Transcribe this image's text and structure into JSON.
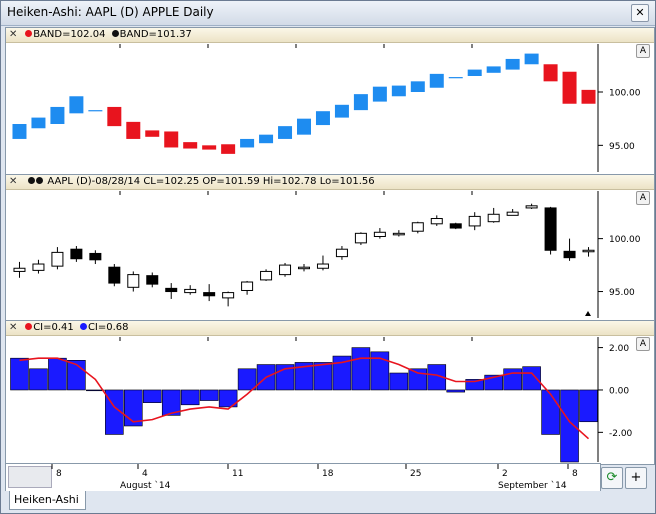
{
  "window": {
    "title": "Heiken-Ashi: AAPL (D) APPLE Daily",
    "close_label": "✕"
  },
  "panes": {
    "band": {
      "legend": [
        {
          "label": "BAND=102.04",
          "color": "#e8141e"
        },
        {
          "label": "BAND=101.37",
          "color": "#111111"
        }
      ],
      "a_label": "A",
      "yticks": [
        "100.00",
        "95.00"
      ]
    },
    "price": {
      "legend": "AAPL (D)-08/28/14 CL=102.25 OP=101.59 Hi=102.78 Lo=101.56",
      "a_label": "A",
      "yticks": [
        "100.00",
        "95.00"
      ]
    },
    "ci": {
      "legend": [
        {
          "label": "CI=0.41",
          "color": "#e8141e"
        },
        {
          "label": "CI=0.68",
          "color": "#1a1aff"
        }
      ],
      "a_label": "A",
      "yticks": [
        "2.00",
        "0.00",
        "-2.00"
      ]
    }
  },
  "xaxis": {
    "day_labels": [
      "8",
      "4",
      "11",
      "18",
      "25",
      "2",
      "8"
    ],
    "month_labels": [
      "August `14",
      "September `14"
    ]
  },
  "buttons": {
    "refresh_icon": "refresh-icon",
    "add_label": "+"
  },
  "tab": {
    "label": "Heiken-Ashi"
  },
  "chart_data": [
    {
      "type": "bar",
      "title": "BAND",
      "series": [
        {
          "name": "BAND=102.04",
          "color": "#e8141e"
        },
        {
          "name": "BAND=101.37",
          "color": "#1e8cf0"
        }
      ],
      "bars": [
        {
          "open": 95.6,
          "close": 97.0,
          "color": "#1e8cf0"
        },
        {
          "open": 96.6,
          "close": 97.6,
          "color": "#1e8cf0"
        },
        {
          "open": 97.0,
          "close": 98.6,
          "color": "#1e8cf0"
        },
        {
          "open": 98.0,
          "close": 99.6,
          "color": "#1e8cf0"
        },
        {
          "open": 98.3,
          "close": 98.3,
          "color": "#1e8cf0"
        },
        {
          "open": 98.6,
          "close": 96.8,
          "color": "#e8141e"
        },
        {
          "open": 97.2,
          "close": 95.6,
          "color": "#e8141e"
        },
        {
          "open": 96.4,
          "close": 95.8,
          "color": "#e8141e"
        },
        {
          "open": 96.3,
          "close": 94.8,
          "color": "#e8141e"
        },
        {
          "open": 95.3,
          "close": 94.7,
          "color": "#e8141e"
        },
        {
          "open": 95.0,
          "close": 94.6,
          "color": "#e8141e"
        },
        {
          "open": 95.1,
          "close": 94.2,
          "color": "#e8141e"
        },
        {
          "open": 94.8,
          "close": 95.6,
          "color": "#1e8cf0"
        },
        {
          "open": 95.2,
          "close": 96.0,
          "color": "#1e8cf0"
        },
        {
          "open": 95.6,
          "close": 96.8,
          "color": "#1e8cf0"
        },
        {
          "open": 96.0,
          "close": 97.5,
          "color": "#1e8cf0"
        },
        {
          "open": 96.9,
          "close": 98.2,
          "color": "#1e8cf0"
        },
        {
          "open": 97.6,
          "close": 98.8,
          "color": "#1e8cf0"
        },
        {
          "open": 98.3,
          "close": 99.8,
          "color": "#1e8cf0"
        },
        {
          "open": 99.1,
          "close": 100.5,
          "color": "#1e8cf0"
        },
        {
          "open": 99.6,
          "close": 100.6,
          "color": "#1e8cf0"
        },
        {
          "open": 100.0,
          "close": 101.0,
          "color": "#1e8cf0"
        },
        {
          "open": 100.4,
          "close": 101.7,
          "color": "#1e8cf0"
        },
        {
          "open": 101.4,
          "close": 101.4,
          "color": "#1e8cf0"
        },
        {
          "open": 101.5,
          "close": 102.1,
          "color": "#1e8cf0"
        },
        {
          "open": 101.8,
          "close": 102.4,
          "color": "#1e8cf0"
        },
        {
          "open": 102.1,
          "close": 103.1,
          "color": "#1e8cf0"
        },
        {
          "open": 102.6,
          "close": 103.6,
          "color": "#1e8cf0"
        },
        {
          "open": 102.6,
          "close": 101.0,
          "color": "#e8141e"
        },
        {
          "open": 101.9,
          "close": 98.9,
          "color": "#e8141e"
        },
        {
          "open": 100.2,
          "close": 98.9,
          "color": "#e8141e"
        }
      ],
      "ylim": [
        92.5,
        104.5
      ],
      "xlabel": "",
      "ylabel": ""
    },
    {
      "type": "bar",
      "title": "AAPL (D)",
      "candles": [
        {
          "o": 96.9,
          "c": 97.2,
          "h": 97.8,
          "l": 96.3
        },
        {
          "o": 97.0,
          "c": 97.6,
          "h": 98.0,
          "l": 96.7
        },
        {
          "o": 97.4,
          "c": 98.7,
          "h": 99.2,
          "l": 97.1
        },
        {
          "o": 99.0,
          "c": 98.1,
          "h": 99.3,
          "l": 97.8
        },
        {
          "o": 98.6,
          "c": 98.0,
          "h": 98.9,
          "l": 97.6
        },
        {
          "o": 97.3,
          "c": 95.8,
          "h": 97.6,
          "l": 95.5
        },
        {
          "o": 95.4,
          "c": 96.6,
          "h": 96.9,
          "l": 95.0
        },
        {
          "o": 96.5,
          "c": 95.7,
          "h": 96.8,
          "l": 95.4
        },
        {
          "o": 95.3,
          "c": 95.0,
          "h": 95.8,
          "l": 94.3
        },
        {
          "o": 94.9,
          "c": 95.2,
          "h": 95.6,
          "l": 94.7
        },
        {
          "o": 94.9,
          "c": 94.6,
          "h": 95.7,
          "l": 94.1
        },
        {
          "o": 94.4,
          "c": 94.9,
          "h": 95.0,
          "l": 93.6
        },
        {
          "o": 95.1,
          "c": 95.9,
          "h": 96.0,
          "l": 94.7
        },
        {
          "o": 96.1,
          "c": 96.9,
          "h": 97.1,
          "l": 96.0
        },
        {
          "o": 96.6,
          "c": 97.5,
          "h": 97.7,
          "l": 96.4
        },
        {
          "o": 97.2,
          "c": 97.3,
          "h": 97.6,
          "l": 96.9
        },
        {
          "o": 97.2,
          "c": 97.6,
          "h": 98.4,
          "l": 97.0
        },
        {
          "o": 98.3,
          "c": 99.0,
          "h": 99.3,
          "l": 98.0
        },
        {
          "o": 99.6,
          "c": 100.5,
          "h": 100.6,
          "l": 99.4
        },
        {
          "o": 100.2,
          "c": 100.6,
          "h": 101.0,
          "l": 100.0
        },
        {
          "o": 100.4,
          "c": 100.5,
          "h": 100.8,
          "l": 100.2
        },
        {
          "o": 100.7,
          "c": 101.5,
          "h": 101.6,
          "l": 100.5
        },
        {
          "o": 101.4,
          "c": 101.9,
          "h": 102.2,
          "l": 101.2
        },
        {
          "o": 101.4,
          "c": 101.0,
          "h": 101.5,
          "l": 100.9
        },
        {
          "o": 101.2,
          "c": 102.1,
          "h": 102.5,
          "l": 100.8
        },
        {
          "o": 101.6,
          "c": 102.3,
          "h": 102.9,
          "l": 101.5
        },
        {
          "o": 102.2,
          "c": 102.5,
          "h": 102.8,
          "l": 102.2
        },
        {
          "o": 102.9,
          "c": 103.1,
          "h": 103.3,
          "l": 102.8
        },
        {
          "o": 102.9,
          "c": 98.9,
          "h": 103.0,
          "l": 98.5
        },
        {
          "o": 98.8,
          "c": 98.2,
          "h": 100.0,
          "l": 97.9
        },
        {
          "o": 98.9,
          "c": 98.9,
          "h": 99.2,
          "l": 98.3
        }
      ],
      "ylim": [
        92.5,
        104.5
      ],
      "xlabel": "",
      "ylabel": ""
    },
    {
      "type": "bar",
      "title": "CI",
      "series": [
        {
          "name": "CI=0.68",
          "type": "bar",
          "color": "#1a1aff",
          "values": [
            1.5,
            1.0,
            1.5,
            1.4,
            0.0,
            -2.1,
            -1.7,
            -0.6,
            -1.2,
            -0.7,
            -0.5,
            -0.8,
            1.0,
            1.2,
            1.2,
            1.3,
            1.3,
            1.6,
            2.0,
            1.8,
            0.8,
            1.0,
            1.2,
            -0.1,
            0.5,
            0.7,
            1.0,
            1.1,
            -2.1,
            -3.4,
            -1.5
          ]
        },
        {
          "name": "CI=0.41",
          "type": "line",
          "color": "#e8141e",
          "values": [
            1.4,
            1.5,
            1.5,
            1.2,
            0.5,
            -0.8,
            -1.5,
            -1.4,
            -1.1,
            -0.9,
            -0.8,
            -0.9,
            -0.2,
            0.6,
            1.0,
            1.1,
            1.2,
            1.3,
            1.5,
            1.5,
            1.2,
            0.8,
            0.7,
            0.4,
            0.4,
            0.6,
            0.8,
            0.8,
            -0.2,
            -1.5,
            -2.3
          ]
        }
      ],
      "ylim": [
        -3.4,
        2.5
      ],
      "xlabel": "",
      "ylabel": ""
    }
  ]
}
